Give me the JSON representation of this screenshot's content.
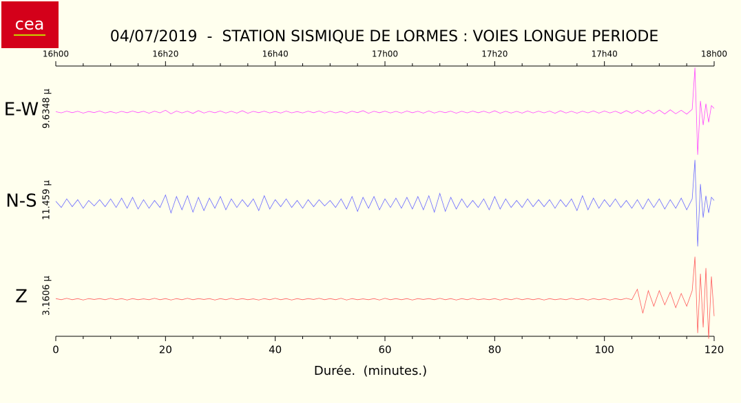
{
  "chart_data": {
    "type": "seismogram",
    "logo": "cea",
    "title": "04/07/2019  -  STATION SISMIQUE DE LORMES : VOIES LONGUE PERIODE",
    "x_label": "Durée.  (minutes.)",
    "xlim": [
      0,
      120
    ],
    "xticks": [
      0,
      20,
      40,
      60,
      80,
      100,
      120
    ],
    "xminorticks": [
      5,
      10,
      15,
      25,
      30,
      35,
      45,
      50,
      55,
      65,
      70,
      75,
      85,
      90,
      95,
      105,
      110,
      115
    ],
    "x2ticks": [
      {
        "value": 0,
        "label": "16h00"
      },
      {
        "value": 20,
        "label": "16h20"
      },
      {
        "value": 40,
        "label": "16h40"
      },
      {
        "value": 60,
        "label": "17h00"
      },
      {
        "value": 80,
        "label": "17h20"
      },
      {
        "value": 100,
        "label": "17h40"
      },
      {
        "value": 120,
        "label": "18h00"
      }
    ],
    "x": [
      0,
      1,
      2,
      3,
      4,
      5,
      6,
      7,
      8,
      9,
      10,
      11,
      12,
      13,
      14,
      15,
      16,
      17,
      18,
      19,
      20,
      21,
      22,
      23,
      24,
      25,
      26,
      27,
      28,
      29,
      30,
      31,
      32,
      33,
      34,
      35,
      36,
      37,
      38,
      39,
      40,
      41,
      42,
      43,
      44,
      45,
      46,
      47,
      48,
      49,
      50,
      51,
      52,
      53,
      54,
      55,
      56,
      57,
      58,
      59,
      60,
      61,
      62,
      63,
      64,
      65,
      66,
      67,
      68,
      69,
      70,
      71,
      72,
      73,
      74,
      75,
      76,
      77,
      78,
      79,
      80,
      81,
      82,
      83,
      84,
      85,
      86,
      87,
      88,
      89,
      90,
      91,
      92,
      93,
      94,
      95,
      96,
      97,
      98,
      99,
      100,
      101,
      102,
      103,
      104,
      105,
      106,
      107,
      108,
      109,
      110,
      111,
      112,
      113,
      114,
      115,
      116,
      116.5,
      117,
      117.5,
      118,
      118.5,
      119,
      119.5,
      120
    ],
    "series": [
      {
        "name": "E-W",
        "color": "#ff44ff",
        "scale": {
          "value": 9.6348,
          "label": "9.6348 µ"
        },
        "values": [
          0.05,
          -0.08,
          0.1,
          -0.06,
          0.09,
          -0.11,
          0.07,
          -0.05,
          0.12,
          -0.09,
          0.06,
          -0.1,
          0.08,
          -0.07,
          0.11,
          -0.06,
          0.09,
          -0.12,
          0.1,
          -0.08,
          0.2,
          -0.18,
          0.12,
          -0.09,
          0.1,
          -0.14,
          0.16,
          -0.1,
          0.08,
          -0.07,
          0.12,
          -0.1,
          0.09,
          -0.11,
          0.15,
          -0.13,
          0.08,
          -0.06,
          0.1,
          -0.09,
          0.07,
          -0.1,
          0.11,
          -0.08,
          0.06,
          -0.09,
          0.1,
          -0.07,
          0.12,
          -0.1,
          0.09,
          -0.08,
          0.07,
          -0.12,
          0.1,
          -0.06,
          0.15,
          -0.13,
          0.09,
          -0.07,
          0.1,
          -0.09,
          0.08,
          -0.1,
          0.12,
          -0.07,
          0.09,
          -0.11,
          0.13,
          -0.1,
          0.08,
          -0.06,
          0.1,
          -0.12,
          0.09,
          -0.08,
          0.11,
          -0.07,
          0.1,
          -0.09,
          0.14,
          -0.12,
          0.09,
          -0.1,
          0.08,
          -0.11,
          0.12,
          -0.09,
          0.1,
          -0.08,
          0.11,
          -0.13,
          0.15,
          -0.1,
          0.09,
          -0.12,
          0.1,
          -0.08,
          0.13,
          -0.11,
          0.12,
          -0.09,
          0.1,
          -0.14,
          0.16,
          -0.12,
          0.18,
          -0.15,
          0.2,
          -0.17,
          0.22,
          -0.2,
          0.25,
          -0.18,
          0.2,
          -0.22,
          0.3,
          4.8,
          -4.6,
          1.2,
          -1.4,
          0.9,
          -1.1,
          0.7,
          0.4
        ]
      },
      {
        "name": "N-S",
        "color": "#6a6aff",
        "scale": {
          "value": 11.459,
          "label": "11.459 µ"
        },
        "values": [
          0.3,
          -0.5,
          0.6,
          -0.4,
          0.5,
          -0.6,
          0.4,
          -0.3,
          0.5,
          -0.4,
          0.6,
          -0.5,
          0.7,
          -0.6,
          0.8,
          -0.7,
          0.5,
          -0.6,
          0.4,
          -0.5,
          1.1,
          -1.2,
          0.9,
          -0.8,
          1.0,
          -1.1,
          0.8,
          -0.9,
          0.7,
          -0.6,
          0.9,
          -0.8,
          0.6,
          -0.5,
          0.5,
          -0.4,
          0.6,
          -0.9,
          1.0,
          -0.7,
          0.5,
          -0.4,
          0.6,
          -0.5,
          0.4,
          -0.6,
          0.5,
          -0.4,
          0.5,
          -0.3,
          0.4,
          -0.5,
          0.6,
          -0.7,
          0.9,
          -1.0,
          0.8,
          -0.6,
          0.9,
          -0.8,
          0.6,
          -0.5,
          0.7,
          -0.6,
          0.8,
          -0.7,
          0.9,
          -0.8,
          1.0,
          -1.1,
          1.3,
          -1.0,
          0.8,
          -0.7,
          0.6,
          -0.5,
          0.4,
          -0.5,
          0.6,
          -0.8,
          0.9,
          -0.7,
          0.6,
          -0.5,
          0.4,
          -0.5,
          0.6,
          -0.4,
          0.5,
          -0.4,
          0.5,
          -0.6,
          0.5,
          -0.4,
          0.6,
          -0.9,
          1.0,
          -0.8,
          0.7,
          -0.6,
          0.5,
          -0.4,
          0.6,
          -0.5,
          0.4,
          -0.6,
          0.5,
          -0.7,
          0.6,
          -0.5,
          0.6,
          -0.7,
          0.5,
          -0.6,
          0.7,
          -0.8,
          0.6,
          5.6,
          -5.5,
          2.5,
          -1.8,
          1.0,
          -1.2,
          0.8,
          0.4
        ]
      },
      {
        "name": "Z",
        "color": "#ff5a5a",
        "scale": {
          "value": 3.1606,
          "label": "3.1606 µ"
        },
        "values": [
          0.02,
          -0.02,
          0.03,
          -0.02,
          0.02,
          -0.03,
          0.02,
          -0.01,
          0.02,
          -0.02,
          0.03,
          -0.02,
          0.02,
          -0.03,
          0.02,
          -0.02,
          0.01,
          -0.02,
          0.03,
          -0.02,
          0.02,
          -0.03,
          0.02,
          -0.02,
          0.03,
          -0.02,
          0.02,
          -0.01,
          0.02,
          -0.03,
          0.02,
          -0.02,
          0.03,
          -0.02,
          0.02,
          -0.02,
          0.01,
          -0.03,
          0.02,
          -0.02,
          0.03,
          -0.02,
          0.02,
          -0.03,
          0.02,
          -0.02,
          0.02,
          -0.01,
          0.03,
          -0.02,
          0.02,
          -0.02,
          0.03,
          -0.03,
          0.02,
          -0.02,
          0.01,
          -0.02,
          0.02,
          -0.03,
          0.03,
          -0.02,
          0.02,
          -0.02,
          0.02,
          -0.03,
          0.02,
          -0.01,
          0.02,
          -0.02,
          0.03,
          -0.02,
          0.02,
          -0.03,
          0.02,
          -0.02,
          0.03,
          -0.02,
          0.01,
          -0.02,
          0.02,
          -0.03,
          0.02,
          -0.02,
          0.03,
          -0.02,
          0.02,
          -0.02,
          0.02,
          -0.03,
          0.02,
          -0.02,
          0.01,
          -0.02,
          0.03,
          -0.02,
          0.02,
          -0.03,
          0.02,
          -0.02,
          0.02,
          -0.03,
          0.02,
          -0.02,
          0.03,
          -0.02,
          0.35,
          -0.5,
          0.3,
          -0.25,
          0.3,
          -0.2,
          0.25,
          -0.3,
          0.2,
          -0.25,
          0.3,
          1.5,
          -1.2,
          0.9,
          -1.0,
          1.1,
          -1.4,
          0.8,
          -0.6
        ]
      }
    ]
  }
}
